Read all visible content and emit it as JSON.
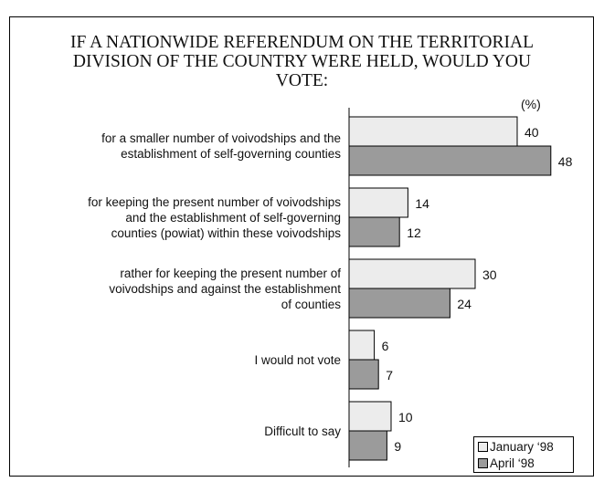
{
  "chart_data": {
    "type": "bar",
    "orientation": "horizontal",
    "title_lines": [
      "IF A NATIONWIDE REFERENDUM ON THE TERRITORIAL",
      "DIVISION OF THE COUNTRY WERE HELD, WOULD YOU",
      "VOTE:"
    ],
    "unit_label": "(%)",
    "categories": [
      [
        "for a smaller number of voivodships and the",
        "establishment of self-governing counties"
      ],
      [
        "for keeping the present number of voivodships",
        "and the establishment of self-governing",
        "counties (powiat) within these voivodships"
      ],
      [
        "rather for keeping the present number of",
        "voivodships and against the establishment",
        "of counties"
      ],
      [
        "I would not vote"
      ],
      [
        "Difficult to say"
      ]
    ],
    "series": [
      {
        "name": "January ‘98",
        "values": [
          40,
          14,
          30,
          6,
          10
        ],
        "color": "#ececec"
      },
      {
        "name": "April ‘98",
        "values": [
          48,
          12,
          24,
          7,
          9
        ],
        "color": "#9b9b9b"
      }
    ],
    "grid": false,
    "legend_position": "bottom-right"
  }
}
